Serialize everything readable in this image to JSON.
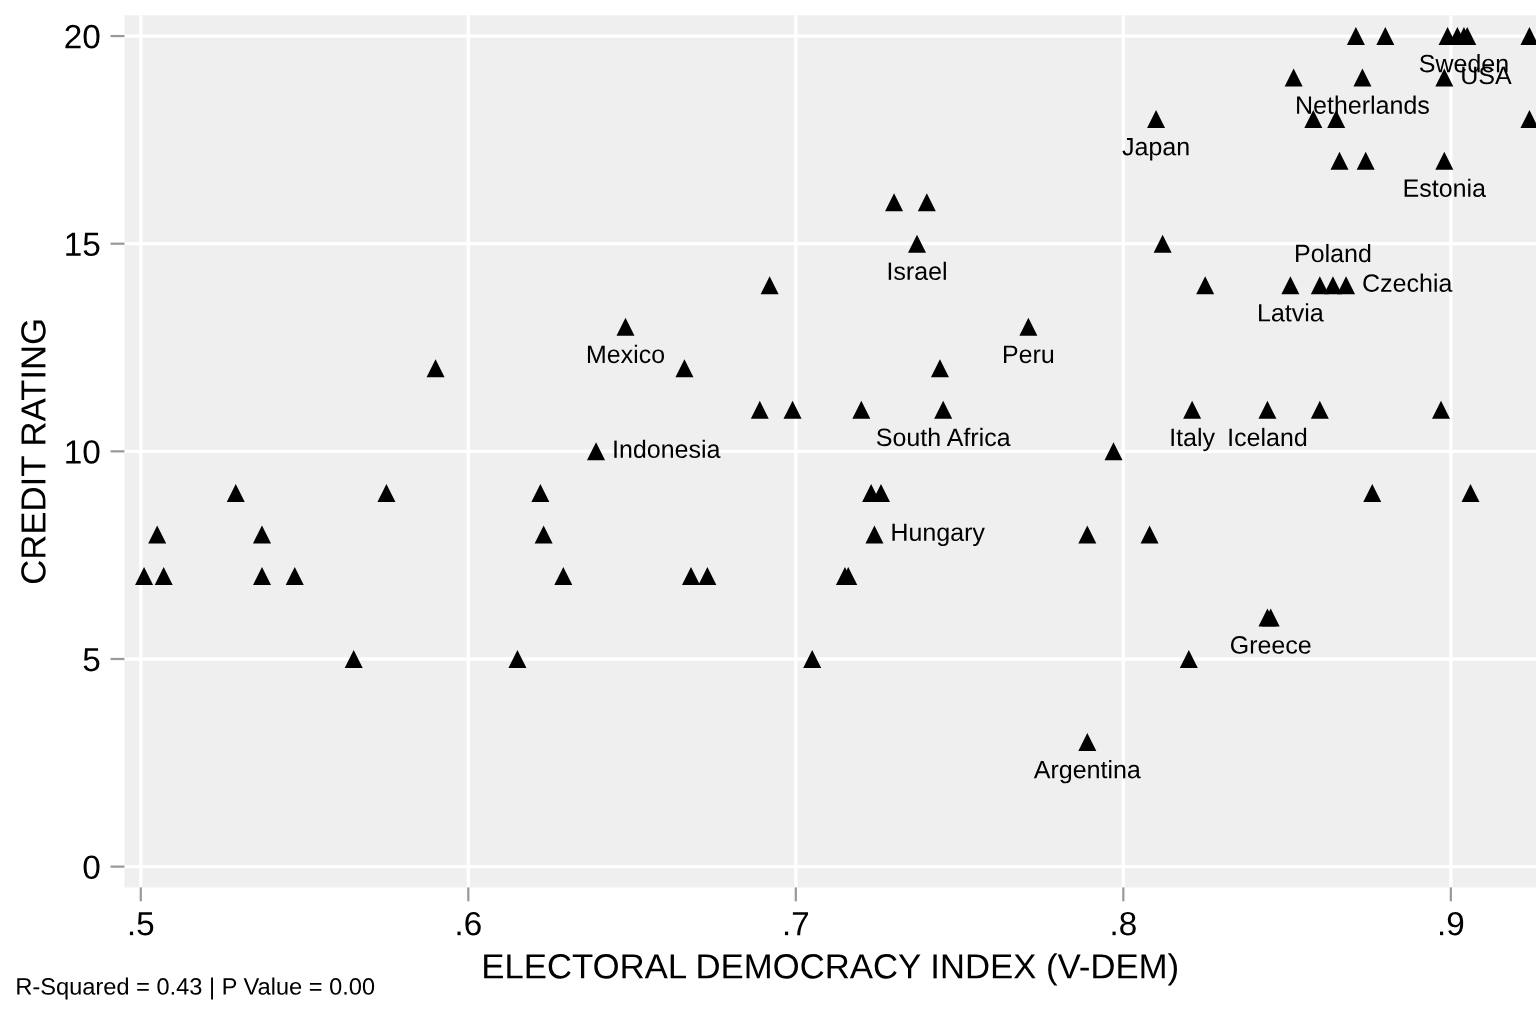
{
  "chart_data": {
    "type": "scatter",
    "xlabel": "ELECTORAL DEMOCRACY INDEX (V-DEM)",
    "ylabel": "CREDIT RATING",
    "x": [
      0.501,
      0.507,
      0.505,
      0.529,
      0.537,
      0.537,
      0.547,
      0.565,
      0.575,
      0.59,
      0.615,
      0.622,
      0.623,
      0.629,
      0.639,
      0.648,
      0.666,
      0.668,
      0.673,
      0.689,
      0.692,
      0.699,
      0.705,
      0.715,
      0.716,
      0.72,
      0.723,
      0.726,
      0.724,
      0.73,
      0.737,
      0.74,
      0.744,
      0.745,
      0.771,
      0.789,
      0.789,
      0.797,
      0.808,
      0.81,
      0.812,
      0.82,
      0.821,
      0.825,
      0.844,
      0.844,
      0.845,
      0.851,
      0.852,
      0.858,
      0.86,
      0.86,
      0.864,
      0.865,
      0.866,
      0.868,
      0.871,
      0.873,
      0.874,
      0.876,
      0.88,
      0.897,
      0.898,
      0.898,
      0.899,
      0.902,
      0.904,
      0.905,
      0.906,
      0.924,
      0.924
    ],
    "series": [
      {
        "color": "#000000",
        "values": [
          7,
          7,
          8,
          9,
          8,
          7,
          7,
          5,
          9,
          12,
          5,
          9,
          8,
          7,
          10,
          13,
          12,
          7,
          7,
          11,
          14,
          11,
          5,
          7,
          7,
          11,
          9,
          9,
          8,
          16,
          15,
          16,
          12,
          11,
          13,
          8,
          3,
          10,
          8,
          18,
          15,
          5,
          11,
          14,
          6,
          11,
          6,
          14,
          19,
          18,
          14,
          11,
          14,
          18,
          17,
          14,
          20,
          19,
          17,
          9,
          20,
          11,
          19,
          17,
          20,
          20,
          20,
          20,
          9,
          18,
          20
        ]
      }
    ],
    "marker": "triangle",
    "xlim": [
      0.495,
      0.926
    ],
    "ylim": [
      -0.5,
      20.5
    ],
    "xticks": [
      {
        "value": 0.5,
        "label": ".5"
      },
      {
        "value": 0.6,
        "label": ".6"
      },
      {
        "value": 0.7,
        "label": ".7"
      },
      {
        "value": 0.8,
        "label": ".8"
      },
      {
        "value": 0.9,
        "label": ".9"
      }
    ],
    "yticks": [
      0,
      5,
      10,
      15,
      20
    ],
    "grid": true,
    "annotations": [
      {
        "text": "Indonesia",
        "x": 0.639,
        "y": 10
      },
      {
        "text": "Mexico",
        "x": 0.648,
        "y": 13
      },
      {
        "text": "Israel",
        "x": 0.737,
        "y": 15
      },
      {
        "text": "South Africa",
        "x": 0.745,
        "y": 11
      },
      {
        "text": "Peru",
        "x": 0.771,
        "y": 13
      },
      {
        "text": "Hungary",
        "x": 0.724,
        "y": 8
      },
      {
        "text": "Argentina",
        "x": 0.789,
        "y": 3
      },
      {
        "text": "Japan",
        "x": 0.81,
        "y": 18
      },
      {
        "text": "Italy",
        "x": 0.821,
        "y": 11
      },
      {
        "text": "Iceland",
        "x": 0.844,
        "y": 11
      },
      {
        "text": "Greece",
        "x": 0.845,
        "y": 6
      },
      {
        "text": "Latvia",
        "x": 0.851,
        "y": 14
      },
      {
        "text": "Poland",
        "x": 0.864,
        "y": 14
      },
      {
        "text": "Czechia",
        "x": 0.868,
        "y": 14
      },
      {
        "text": "Netherlands",
        "x": 0.873,
        "y": 19
      },
      {
        "text": "USA",
        "x": 0.898,
        "y": 19
      },
      {
        "text": "Estonia",
        "x": 0.898,
        "y": 17
      },
      {
        "text": "Sweden",
        "x": 0.904,
        "y": 20
      },
      "R-Squared = 0.43 | P Value = 0.00"
    ]
  }
}
